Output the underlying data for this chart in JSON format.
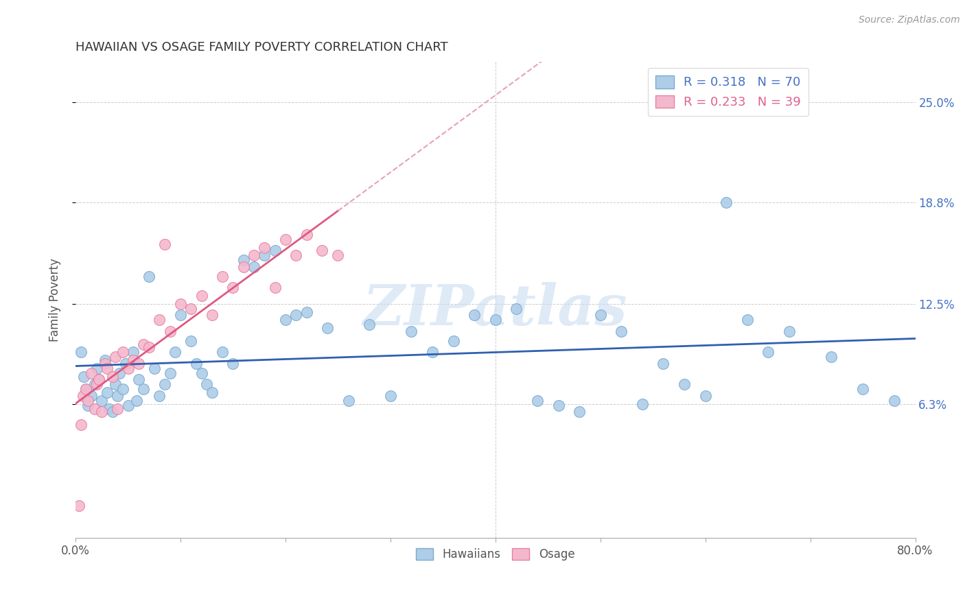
{
  "title": "HAWAIIAN VS OSAGE FAMILY POVERTY CORRELATION CHART",
  "source": "Source: ZipAtlas.com",
  "ylabel": "Family Poverty",
  "ytick_labels": [
    "6.3%",
    "12.5%",
    "18.8%",
    "25.0%"
  ],
  "ytick_values": [
    0.063,
    0.125,
    0.188,
    0.25
  ],
  "xlim": [
    0.0,
    0.8
  ],
  "ylim": [
    -0.02,
    0.275
  ],
  "hawaiian_color": "#AECDE8",
  "hawaiian_edge": "#7AAAD0",
  "osage_color": "#F4B8CE",
  "osage_edge": "#E8809E",
  "trend_hawaiian_color": "#3060B0",
  "trend_osage_color": "#E05880",
  "trend_osage_dash_color": "#E8A0B8",
  "watermark": "ZIPatlas",
  "haw_R": "0.318",
  "haw_N": "70",
  "osage_R": "0.233",
  "osage_N": "39",
  "legend_haw_color": "#4472C4",
  "legend_osage_color": "#E06090"
}
